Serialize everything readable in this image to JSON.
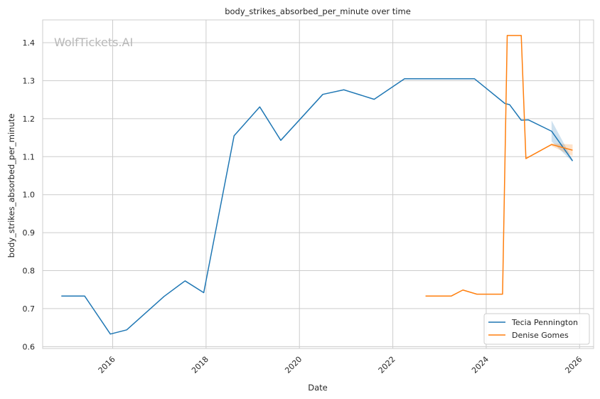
{
  "chart_data": {
    "type": "line",
    "title": "body_strikes_absorbed_per_minute over time",
    "xlabel": "Date",
    "ylabel": "body_strikes_absorbed_per_minute",
    "watermark": "WolfTickets.AI",
    "xlim": [
      2014.5,
      2026.3
    ],
    "ylim": [
      0.595,
      1.46
    ],
    "x_ticks": [
      2016,
      2018,
      2020,
      2022,
      2024,
      2026
    ],
    "y_ticks": [
      0.6,
      0.7,
      0.8,
      0.9,
      1.0,
      1.1,
      1.2,
      1.3,
      1.4
    ],
    "grid": true,
    "legend_position": "bottom-right",
    "series": [
      {
        "name": "Tecia Pennington",
        "color": "#1f77b4",
        "x": [
          2014.9,
          2015.4,
          2015.95,
          2016.3,
          2017.1,
          2017.55,
          2017.95,
          2018.6,
          2019.15,
          2019.6,
          2020.5,
          2020.95,
          2021.6,
          2022.25,
          2023.75,
          2024.4,
          2024.5,
          2024.75,
          2024.9,
          2025.4,
          2025.85
        ],
        "y": [
          0.733,
          0.733,
          0.633,
          0.644,
          0.732,
          0.773,
          0.742,
          1.155,
          1.231,
          1.143,
          1.264,
          1.276,
          1.251,
          1.305,
          1.305,
          1.24,
          1.237,
          1.196,
          1.197,
          1.167,
          1.089
        ],
        "band": {
          "x": [
            2025.4,
            2025.85
          ],
          "lower": [
            1.14,
            1.086
          ],
          "upper": [
            1.195,
            1.092
          ]
        }
      },
      {
        "name": "Denise Gomes",
        "color": "#ff7f0e",
        "x": [
          2022.7,
          2023.25,
          2023.5,
          2023.8,
          2024.35,
          2024.45,
          2024.75,
          2024.85,
          2025.4,
          2025.85
        ],
        "y": [
          0.733,
          0.733,
          0.749,
          0.738,
          0.738,
          1.419,
          1.419,
          1.095,
          1.132,
          1.117
        ],
        "band": {
          "x": [
            2025.4,
            2025.85
          ],
          "lower": [
            1.128,
            1.102
          ],
          "upper": [
            1.135,
            1.132
          ]
        }
      }
    ]
  }
}
